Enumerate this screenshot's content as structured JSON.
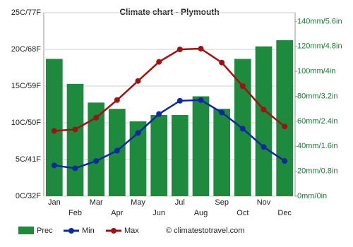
{
  "chart_data": {
    "type": "combo",
    "title": "Climate chart - Plymouth",
    "categories": [
      "Jan",
      "Feb",
      "Mar",
      "Apr",
      "May",
      "Jun",
      "Jul",
      "Aug",
      "Sep",
      "Oct",
      "Nov",
      "Dec"
    ],
    "series": [
      {
        "name": "Prec",
        "type": "bar",
        "axis": "y2",
        "color": "#1e8a3e",
        "values": [
          110,
          90,
          75,
          70,
          60,
          65,
          65,
          80,
          70,
          110,
          120,
          125
        ]
      },
      {
        "name": "Min",
        "type": "line",
        "color": "#0c2a9c",
        "values": [
          4.2,
          3.8,
          4.8,
          6.2,
          8.6,
          11.2,
          13.0,
          13.1,
          11.4,
          9.2,
          6.7,
          4.8
        ]
      },
      {
        "name": "Max",
        "type": "line",
        "color": "#a01212",
        "values": [
          8.9,
          9.1,
          10.7,
          13.1,
          15.7,
          18.3,
          20.0,
          20.1,
          18.2,
          15.0,
          11.8,
          9.5
        ]
      }
    ],
    "ylim": [
      0,
      25
    ],
    "yticks": [
      {
        "value": 0,
        "label": "0C/32F"
      },
      {
        "value": 5,
        "label": "5C/41F"
      },
      {
        "value": 10,
        "label": "10C/50F"
      },
      {
        "value": 15,
        "label": "15C/59F"
      },
      {
        "value": 20,
        "label": "20C/68F"
      },
      {
        "value": 25,
        "label": "25C/77F"
      }
    ],
    "y2lim": [
      0,
      147
    ],
    "y2ticks": [
      {
        "value": 0,
        "label": "0mm/0in"
      },
      {
        "value": 20,
        "label": "20mm/0.8in"
      },
      {
        "value": 40,
        "label": "40mm/1.6in"
      },
      {
        "value": 60,
        "label": "60mm/2.4in"
      },
      {
        "value": 80,
        "label": "80mm/3.2in"
      },
      {
        "value": 100,
        "label": "100mm/4in"
      },
      {
        "value": 120,
        "label": "120mm/4.8in"
      },
      {
        "value": 140,
        "label": "140mm/5.6in"
      }
    ],
    "grid": true,
    "credit": "© climatestotravel.com"
  }
}
